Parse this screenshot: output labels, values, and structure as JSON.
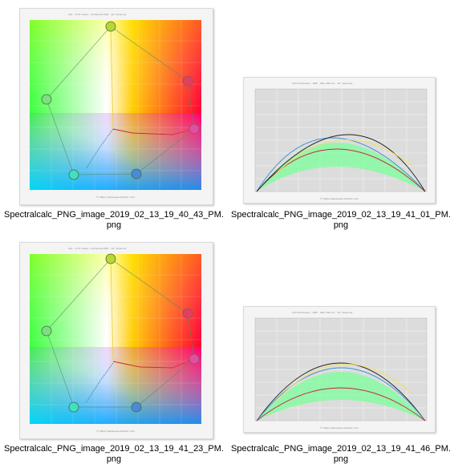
{
  "files": [
    {
      "name_line1": "Spectralcalc_PNG_image_2019_02_13_19_40_43_PM.",
      "name_line2": "png",
      "kind": "chromaticity"
    },
    {
      "name_line1": "Spectralcalc_PNG_image_2019_02_13_19_41_01_PM.",
      "name_line2": "png",
      "kind": "curves"
    },
    {
      "name_line1": "Spectralcalc_PNG_image_2019_02_13_19_41_23_PM.",
      "name_line2": "png",
      "kind": "chromaticity"
    },
    {
      "name_line1": "Spectralcalc_PNG_image_2019_02_13_19_41_46_PM.",
      "name_line2": "png",
      "kind": "curves"
    }
  ],
  "colors": {
    "accent_green": "#7cff9a",
    "line_red": "#cc2244",
    "line_blue": "#3a8fd8",
    "line_black": "#222222",
    "line_yellow": "#f0e060"
  }
}
